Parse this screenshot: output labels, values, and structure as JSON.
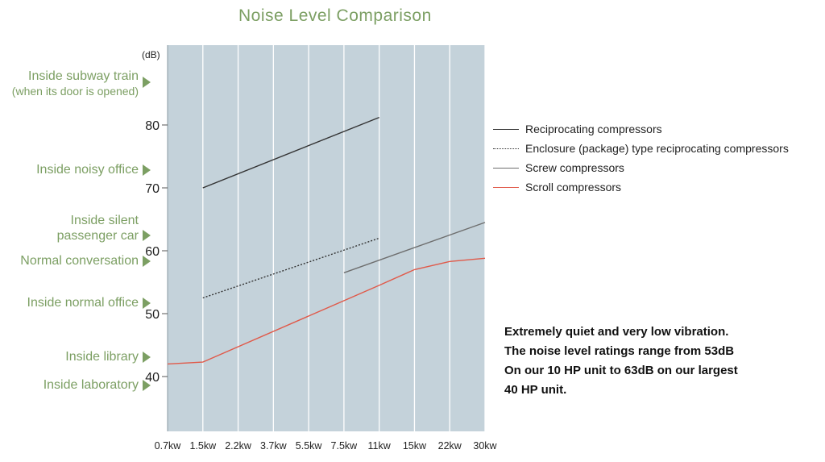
{
  "title": "Noise Level Comparison",
  "left_labels": [
    {
      "lines": [
        "Inside subway train",
        "(when its door is opened)"
      ],
      "db": 87
    },
    {
      "lines": [
        "Inside noisy office"
      ],
      "db": 72
    },
    {
      "lines": [
        "Inside silent",
        "passenger car"
      ],
      "db": 62
    },
    {
      "lines": [
        "Normal conversation"
      ],
      "db": 59
    },
    {
      "lines": [
        "Inside normal office"
      ],
      "db": 52
    },
    {
      "lines": [
        "Inside library"
      ],
      "db": 43
    },
    {
      "lines": [
        "Inside laboratory"
      ],
      "db": 39
    }
  ],
  "note_lines": [
    "Extremely quiet and very low vibration.",
    "The noise level ratings range from 53dB",
    "On our 10 HP unit to 63dB on our largest",
    "40 HP unit."
  ],
  "chart_data": {
    "type": "line",
    "title": "Noise Level Comparison",
    "ylabel": "(dB)",
    "xlabel": "",
    "categories": [
      "0.7kw",
      "1.5kw",
      "2.2kw",
      "3.7kw",
      "5.5kw",
      "7.5kw",
      "11kw",
      "15kw",
      "22kw",
      "30kw"
    ],
    "yticks": [
      40,
      50,
      60,
      70,
      80
    ],
    "ylim": [
      30,
      90
    ],
    "grid": true,
    "legend_position": "right",
    "colors": {
      "background": "#c4d2da",
      "grid": "#ffffff",
      "accent": "#7c9f63"
    },
    "series": [
      {
        "name": "Reciprocating compressors",
        "color": "#333333",
        "dash": "solid",
        "points": [
          [
            "1.5kw",
            70
          ],
          [
            "11kw",
            81.2
          ]
        ]
      },
      {
        "name": "Enclosure (package) type reciprocating compressors",
        "color": "#333333",
        "dash": "dotted",
        "points": [
          [
            "1.5kw",
            52.5
          ],
          [
            "11kw",
            62
          ]
        ]
      },
      {
        "name": "Screw compressors",
        "color": "#6e6e6e",
        "dash": "solid",
        "points": [
          [
            "7.5kw",
            56.5
          ],
          [
            "30kw",
            64.5
          ]
        ]
      },
      {
        "name": "Scroll compressors",
        "color": "#e05a4a",
        "dash": "solid",
        "points": [
          [
            "0.7kw",
            42
          ],
          [
            "1.5kw",
            42.3
          ],
          [
            "11kw",
            54.5
          ],
          [
            "15kw",
            57
          ],
          [
            "22kw",
            58.3
          ],
          [
            "30kw",
            58.8
          ]
        ]
      }
    ]
  }
}
